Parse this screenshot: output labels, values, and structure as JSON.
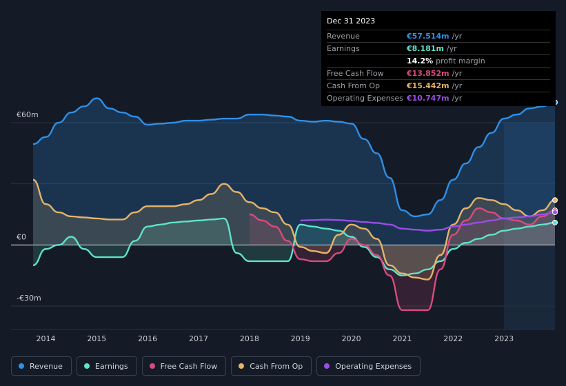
{
  "chart_data": {
    "type": "line",
    "title": "",
    "xlabel": "",
    "ylabel": "",
    "ylim": [
      -30,
      60
    ],
    "y_tick_labels": [
      "€60m",
      "€0",
      "-€30m"
    ],
    "x_tick_labels": [
      "2014",
      "2015",
      "2016",
      "2017",
      "2018",
      "2019",
      "2020",
      "2021",
      "2022",
      "2023"
    ],
    "x_ticks": [
      2014,
      2015,
      2016,
      2017,
      2018,
      2019,
      2020,
      2021,
      2022,
      2023
    ],
    "x_range": [
      2013.3,
      2024.0
    ],
    "forecast_start": 2023.0,
    "series": [
      {
        "name": "Revenue",
        "color": "#2f8fe6",
        "fill": true,
        "x": [
          2013.75,
          2014.0,
          2014.25,
          2014.5,
          2014.75,
          2015.0,
          2015.25,
          2015.5,
          2015.75,
          2016.0,
          2016.25,
          2016.5,
          2016.75,
          2017.0,
          2017.25,
          2017.5,
          2017.75,
          2018.0,
          2018.25,
          2018.5,
          2018.75,
          2019.0,
          2019.25,
          2019.5,
          2019.75,
          2020.0,
          2020.25,
          2020.5,
          2020.75,
          2021.0,
          2021.25,
          2021.5,
          2021.75,
          2022.0,
          2022.25,
          2022.5,
          2022.75,
          2023.0,
          2023.25,
          2023.5,
          2023.75,
          2024.0
        ],
        "values": [
          49.5,
          53.0,
          60.0,
          65.0,
          68.0,
          72.0,
          67.0,
          65.0,
          63.0,
          59.0,
          59.5,
          60.0,
          61.0,
          61.0,
          61.5,
          62.0,
          62.0,
          64.0,
          64.0,
          63.5,
          63.0,
          61.0,
          60.5,
          61.0,
          60.5,
          59.5,
          52.0,
          45.0,
          33.0,
          17.0,
          14.0,
          15.0,
          22.0,
          32.0,
          40.0,
          48.0,
          55.0,
          62.0,
          64.0,
          67.0,
          68.0,
          70.0
        ]
      },
      {
        "name": "Earnings",
        "color": "#5fe3c9",
        "fill": true,
        "x": [
          2013.75,
          2014.0,
          2014.25,
          2014.5,
          2014.75,
          2015.0,
          2015.25,
          2015.5,
          2015.75,
          2016.0,
          2016.25,
          2016.5,
          2016.75,
          2017.0,
          2017.25,
          2017.5,
          2017.75,
          2018.0,
          2018.25,
          2018.5,
          2018.75,
          2019.0,
          2019.25,
          2019.5,
          2019.75,
          2020.0,
          2020.25,
          2020.5,
          2020.75,
          2021.0,
          2021.25,
          2021.5,
          2021.75,
          2022.0,
          2022.25,
          2022.5,
          2022.75,
          2023.0,
          2023.25,
          2023.5,
          2023.75,
          2024.0
        ],
        "values": [
          -10.0,
          -2.0,
          0.0,
          4.0,
          -2.0,
          -6.0,
          -6.0,
          -6.0,
          2.0,
          9.0,
          10.0,
          11.0,
          11.5,
          12.0,
          12.5,
          13.0,
          -4.0,
          -8.0,
          -8.0,
          -8.0,
          -8.0,
          10.0,
          9.0,
          8.0,
          7.0,
          4.0,
          -1.0,
          -6.0,
          -12.0,
          -15.0,
          -14.0,
          -12.0,
          -8.0,
          -2.0,
          1.0,
          3.0,
          5.0,
          7.0,
          8.0,
          9.0,
          10.0,
          11.0
        ]
      },
      {
        "name": "Free Cash Flow",
        "color": "#d94a80",
        "fill": true,
        "x": [
          2018.0,
          2018.25,
          2018.5,
          2018.75,
          2019.0,
          2019.25,
          2019.5,
          2019.75,
          2020.0,
          2020.25,
          2020.5,
          2020.75,
          2021.0,
          2021.25,
          2021.5,
          2021.75,
          2022.0,
          2022.25,
          2022.5,
          2022.75,
          2023.0,
          2023.25,
          2023.5,
          2023.75,
          2024.0
        ],
        "values": [
          15.0,
          12.0,
          9.0,
          2.0,
          -7.0,
          -8.0,
          -8.0,
          -4.0,
          3.0,
          0.0,
          -5.0,
          -15.0,
          -32.0,
          -32.0,
          -32.0,
          -12.0,
          5.0,
          12.0,
          18.0,
          16.0,
          13.0,
          12.0,
          10.0,
          14.0,
          17.0
        ]
      },
      {
        "name": "Cash From Op",
        "color": "#e6b36b",
        "fill": true,
        "x": [
          2013.75,
          2014.0,
          2014.25,
          2014.5,
          2014.75,
          2015.0,
          2015.25,
          2015.5,
          2015.75,
          2016.0,
          2016.25,
          2016.5,
          2016.75,
          2017.0,
          2017.25,
          2017.5,
          2017.75,
          2018.0,
          2018.25,
          2018.5,
          2018.75,
          2019.0,
          2019.25,
          2019.5,
          2019.75,
          2020.0,
          2020.25,
          2020.5,
          2020.75,
          2021.0,
          2021.25,
          2021.5,
          2021.75,
          2022.0,
          2022.25,
          2022.5,
          2022.75,
          2023.0,
          2023.25,
          2023.5,
          2023.75,
          2024.0
        ],
        "values": [
          32.0,
          20.0,
          16.0,
          14.0,
          13.5,
          13.0,
          12.5,
          12.5,
          16.0,
          19.0,
          19.0,
          19.0,
          20.0,
          22.0,
          25.0,
          30.0,
          26.0,
          21.0,
          18.0,
          16.0,
          10.0,
          -1.0,
          -3.0,
          -4.0,
          5.0,
          10.0,
          8.0,
          3.0,
          -10.0,
          -14.0,
          -16.0,
          -17.0,
          -5.0,
          10.0,
          18.0,
          23.0,
          22.0,
          20.0,
          17.0,
          14.0,
          17.0,
          22.0
        ]
      },
      {
        "name": "Operating Expenses",
        "color": "#9b4de6",
        "fill": false,
        "x": [
          2019.0,
          2019.25,
          2019.5,
          2019.75,
          2020.0,
          2020.25,
          2020.5,
          2020.75,
          2021.0,
          2021.25,
          2021.5,
          2021.75,
          2022.0,
          2022.25,
          2022.5,
          2022.75,
          2023.0,
          2023.25,
          2023.5,
          2023.75,
          2024.0
        ],
        "values": [
          12.0,
          12.2,
          12.4,
          12.2,
          11.8,
          11.2,
          10.8,
          10.0,
          8.0,
          7.5,
          7.0,
          7.5,
          9.0,
          10.0,
          11.0,
          12.0,
          13.0,
          13.5,
          14.0,
          15.0,
          16.0
        ]
      }
    ]
  },
  "tooltip": {
    "date": "Dec 31 2023",
    "rows": [
      {
        "label": "Revenue",
        "value": "€57.514m",
        "unit": "/yr",
        "color": "#2f8fe6"
      },
      {
        "label": "Earnings",
        "value": "€8.181m",
        "unit": "/yr",
        "color": "#5fe3c9"
      },
      {
        "label": "",
        "value": "14.2%",
        "unit": "profit margin",
        "color": "#ffffff"
      },
      {
        "label": "Free Cash Flow",
        "value": "€13.852m",
        "unit": "/yr",
        "color": "#d94a80"
      },
      {
        "label": "Cash From Op",
        "value": "€15.442m",
        "unit": "/yr",
        "color": "#e6b36b"
      },
      {
        "label": "Operating Expenses",
        "value": "€10.747m",
        "unit": "/yr",
        "color": "#9b4de6"
      }
    ]
  },
  "legend": [
    {
      "label": "Revenue",
      "color": "#2f8fe6"
    },
    {
      "label": "Earnings",
      "color": "#5fe3c9"
    },
    {
      "label": "Free Cash Flow",
      "color": "#d94a80"
    },
    {
      "label": "Cash From Op",
      "color": "#e6b36b"
    },
    {
      "label": "Operating Expenses",
      "color": "#9b4de6"
    }
  ]
}
